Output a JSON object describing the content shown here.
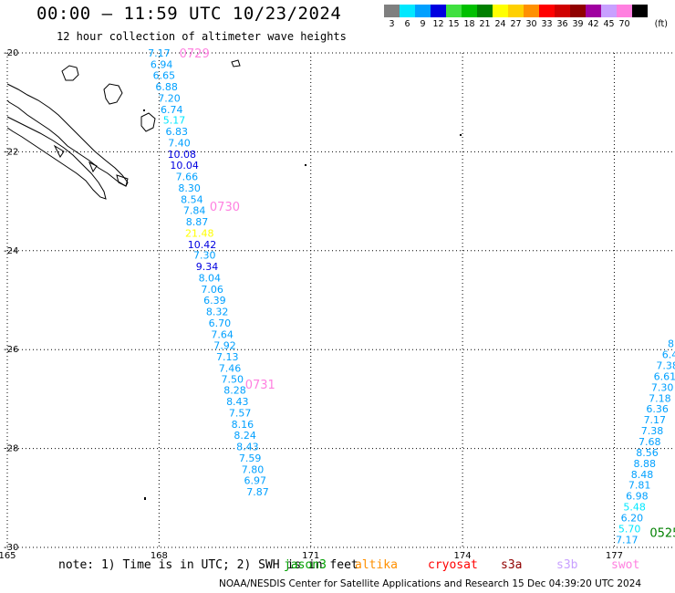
{
  "header": {
    "title": "00:00 – 11:59 UTC 10/23/2024",
    "subtitle": "12 hour collection of altimeter wave heights"
  },
  "legend": {
    "unit": "(ft)",
    "bins": [
      {
        "label": "3",
        "color": "#7f7f7f"
      },
      {
        "label": "6",
        "color": "#00e8ff"
      },
      {
        "label": "9",
        "color": "#00a0ff"
      },
      {
        "label": "12",
        "color": "#0000e0"
      },
      {
        "label": "15",
        "color": "#40e040"
      },
      {
        "label": "18",
        "color": "#00c000"
      },
      {
        "label": "21",
        "color": "#008000"
      },
      {
        "label": "24",
        "color": "#ffff00"
      },
      {
        "label": "27",
        "color": "#ffd000"
      },
      {
        "label": "30",
        "color": "#ff9000"
      },
      {
        "label": "33",
        "color": "#ff0000"
      },
      {
        "label": "36",
        "color": "#d00000"
      },
      {
        "label": "39",
        "color": "#900000"
      },
      {
        "label": "42",
        "color": "#a000a0"
      },
      {
        "label": "45",
        "color": "#c8a0ff"
      },
      {
        "label": "70",
        "color": "#ff80e0"
      },
      {
        "label": "",
        "color": "#000000"
      }
    ]
  },
  "chart_data": {
    "type": "scatter",
    "xlim": [
      165,
      178.2
    ],
    "ylim": [
      -30,
      -20
    ],
    "x_ticks": [
      "165",
      "168",
      "171",
      "174",
      "177"
    ],
    "y_ticks": [
      "-20",
      "-22",
      "-24",
      "-26",
      "-28",
      "-30"
    ],
    "tracks": [
      {
        "pass_labels": [
          {
            "text": "0729",
            "lon": 168.7,
            "lat": -20.0
          },
          {
            "text": "0730",
            "lon": 169.3,
            "lat": -23.1
          },
          {
            "text": "0731",
            "lon": 170.0,
            "lat": -26.7
          }
        ],
        "points": [
          {
            "lon": 168.0,
            "lat": -20.0,
            "value": "7.17"
          },
          {
            "lon": 168.05,
            "lat": -20.23,
            "value": "6.94"
          },
          {
            "lon": 168.1,
            "lat": -20.45,
            "value": "6.65"
          },
          {
            "lon": 168.15,
            "lat": -20.68,
            "value": "6.88"
          },
          {
            "lon": 168.2,
            "lat": -20.91,
            "value": "7.20"
          },
          {
            "lon": 168.25,
            "lat": -21.14,
            "value": "6.74"
          },
          {
            "lon": 168.3,
            "lat": -21.36,
            "value": "5.17"
          },
          {
            "lon": 168.35,
            "lat": -21.59,
            "value": "6.83"
          },
          {
            "lon": 168.4,
            "lat": -21.82,
            "value": "7.40"
          },
          {
            "lon": 168.45,
            "lat": -22.05,
            "value": "10.08"
          },
          {
            "lon": 168.5,
            "lat": -22.27,
            "value": "10.04"
          },
          {
            "lon": 168.55,
            "lat": -22.5,
            "value": "7.66"
          },
          {
            "lon": 168.6,
            "lat": -22.73,
            "value": "8.30"
          },
          {
            "lon": 168.65,
            "lat": -22.96,
            "value": "8.54"
          },
          {
            "lon": 168.7,
            "lat": -23.18,
            "value": "7.84"
          },
          {
            "lon": 168.75,
            "lat": -23.41,
            "value": "8.87"
          },
          {
            "lon": 168.8,
            "lat": -23.64,
            "value": "21.48"
          },
          {
            "lon": 168.85,
            "lat": -23.87,
            "value": "10.42"
          },
          {
            "lon": 168.9,
            "lat": -24.09,
            "value": "7.30"
          },
          {
            "lon": 168.95,
            "lat": -24.32,
            "value": "9.34"
          },
          {
            "lon": 169.0,
            "lat": -24.55,
            "value": "8.04"
          },
          {
            "lon": 169.05,
            "lat": -24.78,
            "value": "7.06"
          },
          {
            "lon": 169.1,
            "lat": -25.0,
            "value": "6.39"
          },
          {
            "lon": 169.15,
            "lat": -25.23,
            "value": "8.32"
          },
          {
            "lon": 169.2,
            "lat": -25.46,
            "value": "6.70"
          },
          {
            "lon": 169.25,
            "lat": -25.69,
            "value": "7.64"
          },
          {
            "lon": 169.3,
            "lat": -25.91,
            "value": "7.92"
          },
          {
            "lon": 169.35,
            "lat": -26.14,
            "value": "7.13"
          },
          {
            "lon": 169.4,
            "lat": -26.37,
            "value": "7.46"
          },
          {
            "lon": 169.45,
            "lat": -26.6,
            "value": "7.50"
          },
          {
            "lon": 169.5,
            "lat": -26.82,
            "value": "8.28"
          },
          {
            "lon": 169.55,
            "lat": -27.05,
            "value": "8.43"
          },
          {
            "lon": 169.6,
            "lat": -27.28,
            "value": "7.57"
          },
          {
            "lon": 169.65,
            "lat": -27.51,
            "value": "8.16"
          },
          {
            "lon": 169.7,
            "lat": -27.73,
            "value": "8.24"
          },
          {
            "lon": 169.75,
            "lat": -27.96,
            "value": "8.43"
          },
          {
            "lon": 169.8,
            "lat": -28.19,
            "value": "7.59"
          },
          {
            "lon": 169.85,
            "lat": -28.42,
            "value": "7.80"
          },
          {
            "lon": 169.9,
            "lat": -28.64,
            "value": "6.97"
          },
          {
            "lon": 169.95,
            "lat": -28.87,
            "value": "7.87"
          }
        ]
      },
      {
        "pass_labels": [
          {
            "text": "0525",
            "lon": 178.0,
            "lat": -29.7
          }
        ],
        "points": [
          {
            "lon": 177.25,
            "lat": -29.84,
            "value": "7.17"
          },
          {
            "lon": 177.3,
            "lat": -29.62,
            "value": "5.70"
          },
          {
            "lon": 177.35,
            "lat": -29.4,
            "value": "6.20"
          },
          {
            "lon": 177.4,
            "lat": -29.18,
            "value": "5.48"
          },
          {
            "lon": 177.45,
            "lat": -28.96,
            "value": "6.98"
          },
          {
            "lon": 177.5,
            "lat": -28.74,
            "value": "7.81"
          },
          {
            "lon": 177.55,
            "lat": -28.52,
            "value": "8.48"
          },
          {
            "lon": 177.6,
            "lat": -28.3,
            "value": "8.88"
          },
          {
            "lon": 177.65,
            "lat": -28.08,
            "value": "8.56"
          },
          {
            "lon": 177.7,
            "lat": -27.86,
            "value": "7.68"
          },
          {
            "lon": 177.75,
            "lat": -27.64,
            "value": "7.38"
          },
          {
            "lon": 177.8,
            "lat": -27.42,
            "value": "7.17"
          },
          {
            "lon": 177.85,
            "lat": -27.2,
            "value": "6.36"
          },
          {
            "lon": 177.9,
            "lat": -26.98,
            "value": "7.18"
          },
          {
            "lon": 177.95,
            "lat": -26.76,
            "value": "7.30"
          },
          {
            "lon": 178.0,
            "lat": -26.54,
            "value": "6.61"
          },
          {
            "lon": 178.05,
            "lat": -26.32,
            "value": "7.38"
          },
          {
            "lon": 178.1,
            "lat": -26.1,
            "value": "6.4"
          },
          {
            "lon": 178.15,
            "lat": -25.88,
            "value": "8."
          }
        ]
      }
    ]
  },
  "footer": {
    "note": "note: 1) Time is in UTC; 2) SWH is in feet",
    "satellites": [
      {
        "name": "jason3",
        "color": "#00a000"
      },
      {
        "name": "altika",
        "color": "#ff9000"
      },
      {
        "name": "cryosat",
        "color": "#ff0000"
      },
      {
        "name": "s3a",
        "color": "#900000"
      },
      {
        "name": "s3b",
        "color": "#c8a0ff"
      },
      {
        "name": "swot",
        "color": "#ff80e0"
      }
    ],
    "credit": "NOAA/NESDIS Center for Satellite Applications and Research",
    "timestamp": "15 Dec 04:39:20 UTC 2024"
  }
}
